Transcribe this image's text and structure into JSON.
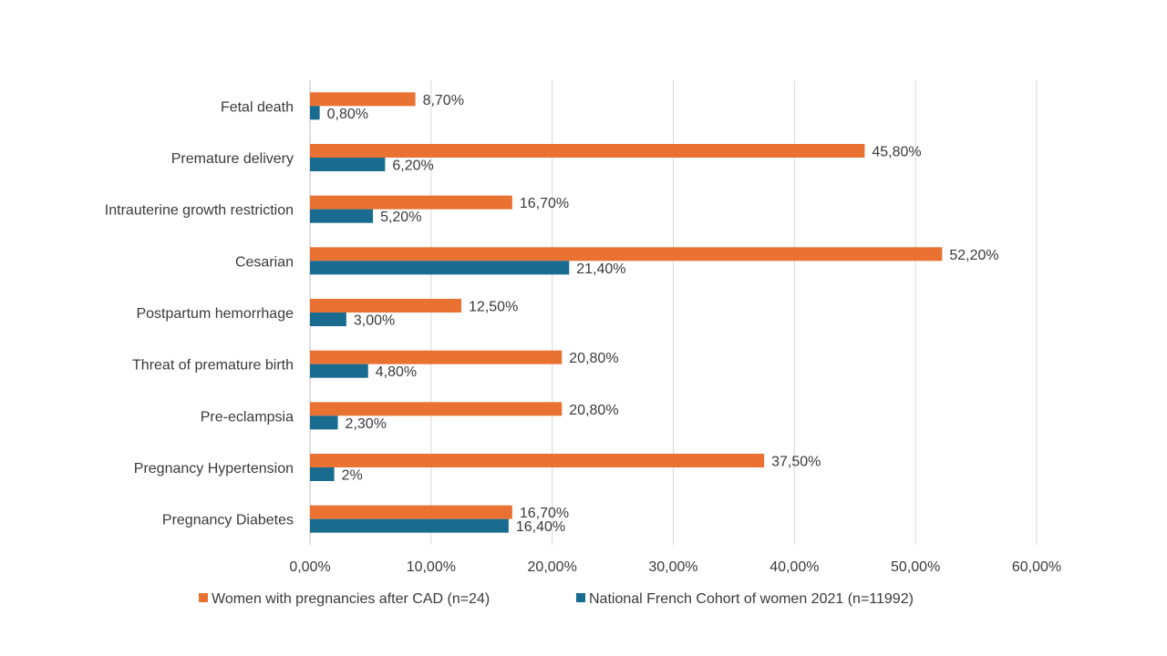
{
  "colors": {
    "series1": "#e97132",
    "series2": "#196b8f",
    "grid": "#d9d9d9",
    "text": "#3a3a3a"
  },
  "chart_data": {
    "type": "bar",
    "orientation": "horizontal",
    "title": "",
    "xlabel": "",
    "ylabel": "",
    "xlim": [
      0,
      60
    ],
    "x_ticks": [
      "0,00%",
      "10,00%",
      "20,00%",
      "30,00%",
      "40,00%",
      "50,00%",
      "60,00%"
    ],
    "categories": [
      "Fetal death",
      "Premature delivery",
      "Intrauterine growth restriction",
      "Cesarian",
      "Postpartum hemorrhage",
      "Threat of premature birth",
      "Pre-eclampsia",
      "Pregnancy Hypertension",
      "Pregnancy Diabetes"
    ],
    "series": [
      {
        "name": "Women with pregnancies after CAD (n=24)",
        "color": "#e97132",
        "values": [
          8.7,
          45.8,
          16.7,
          52.2,
          12.5,
          20.8,
          20.8,
          37.5,
          16.7
        ],
        "labels": [
          "8,70%",
          "45,80%",
          "16,70%",
          "52,20%",
          "12,50%",
          "20,80%",
          "20,80%",
          "37,50%",
          "16,70%"
        ]
      },
      {
        "name": "National French Cohort of women 2021 (n=11992)",
        "color": "#196b8f",
        "values": [
          0.8,
          6.2,
          5.2,
          21.4,
          3.0,
          4.8,
          2.3,
          2.0,
          16.4
        ],
        "labels": [
          "0,80%",
          "6,20%",
          "5,20%",
          "21,40%",
          "3,00%",
          "4,80%",
          "2,30%",
          "2%",
          "16,40%"
        ]
      }
    ],
    "grid": true,
    "legend_position": "bottom"
  }
}
